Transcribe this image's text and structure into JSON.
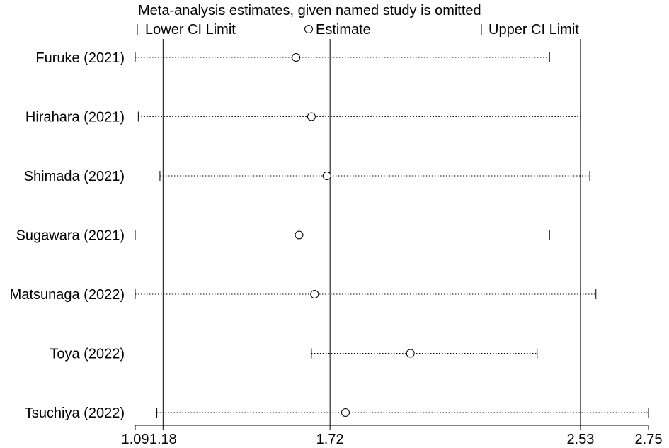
{
  "chart_data": {
    "type": "forest-sensitivity",
    "title": "Meta-analysis estimates, given named study is omitted",
    "legend": {
      "lower_label": "Lower CI Limit",
      "estimate_label": "Estimate",
      "upper_label": "Upper CI Limit",
      "placement": "top"
    },
    "xlim": [
      1.09,
      2.75
    ],
    "x_ticks": [
      {
        "value": 1.09,
        "label": "1.09"
      },
      {
        "value": 1.18,
        "label": "1.18"
      },
      {
        "value": 1.72,
        "label": "1.72"
      },
      {
        "value": 2.53,
        "label": "2.53"
      },
      {
        "value": 2.75,
        "label": "2.75"
      }
    ],
    "reference_lines": [
      1.18,
      1.72,
      2.53
    ],
    "studies": [
      {
        "label": "Furuke (2021)",
        "lower": 1.09,
        "estimate": 1.61,
        "upper": 2.43
      },
      {
        "label": "Hirahara (2021)",
        "lower": 1.1,
        "estimate": 1.66,
        "upper": 2.53
      },
      {
        "label": "Shimada (2021)",
        "lower": 1.17,
        "estimate": 1.71,
        "upper": 2.56
      },
      {
        "label": "Sugawara (2021)",
        "lower": 1.09,
        "estimate": 1.62,
        "upper": 2.43
      },
      {
        "label": "Matsunaga (2022)",
        "lower": 1.09,
        "estimate": 1.67,
        "upper": 2.58
      },
      {
        "label": "Toya (2022)",
        "lower": 1.66,
        "estimate": 1.98,
        "upper": 2.39
      },
      {
        "label": "Tsuchiya (2022)",
        "lower": 1.16,
        "estimate": 1.77,
        "upper": 2.75
      }
    ]
  }
}
